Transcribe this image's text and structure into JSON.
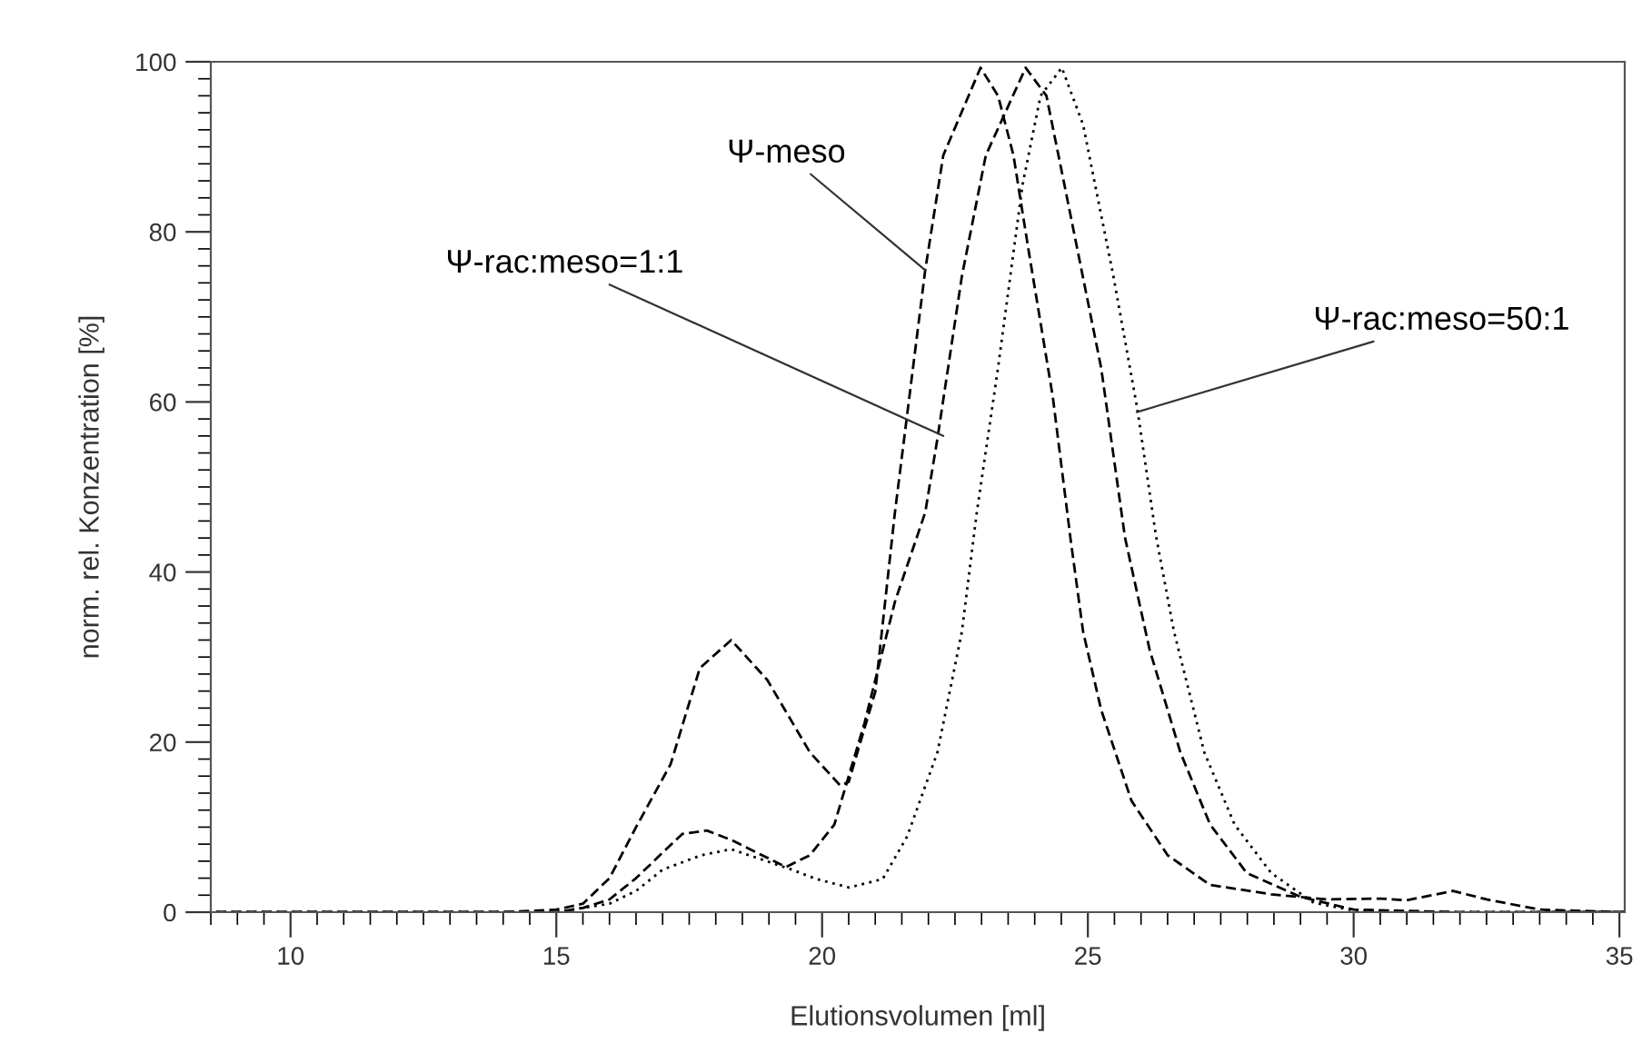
{
  "chart_data": {
    "type": "line",
    "xlabel": "Elutionsvolumen [ml]",
    "ylabel": "norm. rel. Konzentration [%]",
    "xlim": [
      8.6,
      35.1
    ],
    "xticks": [
      10,
      15,
      20,
      25,
      30,
      35
    ],
    "ylim": [
      0,
      100
    ],
    "yticks": [
      0,
      20,
      40,
      60,
      80,
      100
    ],
    "grid": false,
    "legend": false,
    "marker": "none",
    "series": [
      {
        "color": "#000000",
        "line_style": "dashed",
        "x": [
          8.6,
          10,
          12,
          14,
          15,
          15.5,
          16,
          16.5,
          17.15,
          17.7,
          18.29,
          18.97,
          19.77,
          20.34,
          20.5,
          21.0,
          21.37,
          21.94,
          22.28,
          22.98,
          23.31,
          23.6,
          23.88,
          24.34,
          24.68,
          24.91,
          25.25,
          25.82,
          26.5,
          27.3,
          28.45,
          29.5,
          30.5,
          31.0,
          31.87,
          32.5,
          33.5,
          35.1
        ],
        "values": [
          0,
          0,
          0,
          0,
          0.3,
          1,
          4,
          10,
          17.4,
          28.7,
          32,
          27.3,
          18.8,
          14.9,
          15.3,
          25.9,
          47,
          75.5,
          89,
          99.3,
          96,
          89,
          78,
          60.6,
          43.6,
          33,
          23.8,
          13.1,
          6.7,
          3.2,
          2.1,
          1.5,
          1.6,
          1.4,
          2.5,
          1.5,
          0.3,
          0
        ]
      },
      {
        "color": "#000000",
        "line_style": "dashed",
        "x": [
          8.6,
          10,
          12,
          14,
          15,
          15.5,
          16,
          16.5,
          17.0,
          17.37,
          17.83,
          18.29,
          19.32,
          19.77,
          20.23,
          20.8,
          21.37,
          21.94,
          22.17,
          22.63,
          23.08,
          23.83,
          24.22,
          24.56,
          25.25,
          25.7,
          26.16,
          26.74,
          27.3,
          27.99,
          29.0,
          30.0,
          32.0,
          35.1
        ],
        "values": [
          0,
          0,
          0,
          0,
          0,
          0.5,
          1.5,
          4,
          7,
          9.2,
          9.6,
          8.5,
          5.3,
          6.7,
          10.3,
          22.3,
          36.5,
          47,
          55.7,
          74.8,
          89,
          99.3,
          96,
          85.5,
          64,
          44,
          30.9,
          18.8,
          10.3,
          4.6,
          1.8,
          0.3,
          0,
          0
        ]
      },
      {
        "color": "#000000",
        "line_style": "dotted",
        "x": [
          8.6,
          10,
          12,
          14,
          15,
          15.5,
          16,
          16.5,
          17.0,
          17.73,
          18.29,
          19.43,
          19.89,
          20.51,
          21.14,
          21.6,
          22.17,
          22.63,
          22.91,
          23.31,
          23.77,
          24.11,
          24.51,
          24.91,
          25.48,
          25.93,
          26.28,
          26.62,
          27.19,
          27.76,
          28.45,
          29.25,
          30.0,
          32.0,
          35.1
        ],
        "values": [
          0,
          0,
          0,
          0,
          0,
          0.5,
          1,
          2.5,
          5,
          6.7,
          7.4,
          5.0,
          3.9,
          2.9,
          3.9,
          8.9,
          18.8,
          33,
          47,
          64,
          85.5,
          96,
          99.3,
          92.6,
          74.8,
          59.2,
          44.3,
          33,
          18.8,
          10.3,
          4.6,
          1.1,
          0.2,
          0,
          0
        ]
      }
    ],
    "annotations": [
      {
        "text": "Ψ-meso",
        "x": 21.94,
        "y": 75.5
      },
      {
        "text": "Ψ-rac:meso=1:1",
        "x": 22.28,
        "y": 56
      },
      {
        "text": "Ψ-rac:meso=50:1",
        "x": 25.92,
        "y": 58.8
      }
    ]
  }
}
